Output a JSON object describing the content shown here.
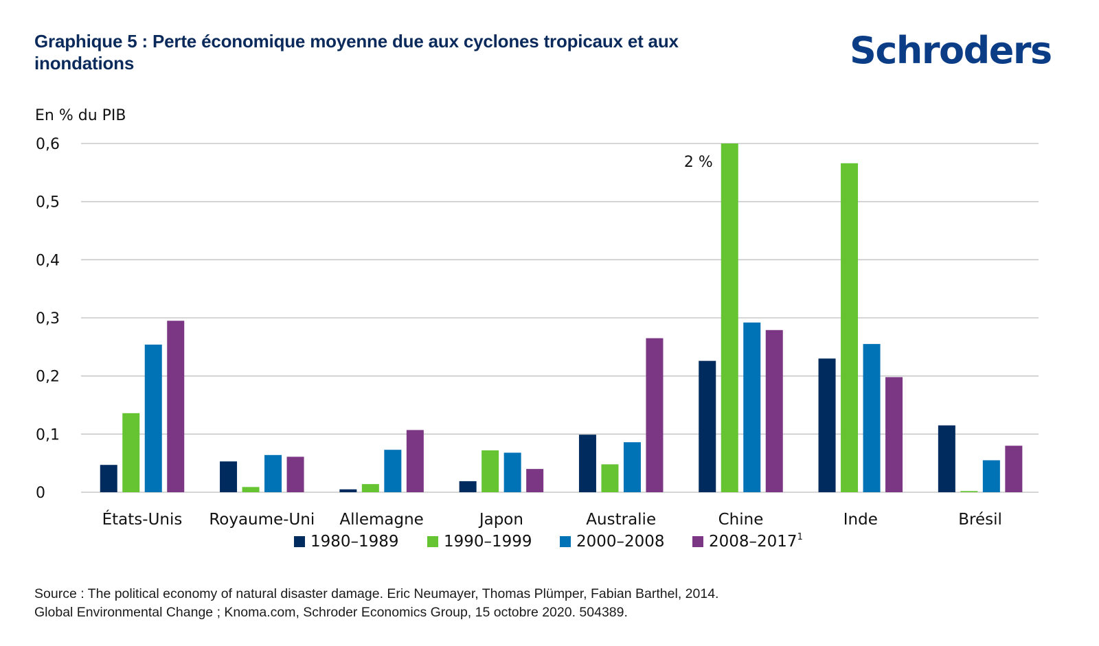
{
  "header": {
    "title": "Graphique 5 : Perte économique moyenne due aux cyclones tropicaux et aux inondations",
    "logo": "Schroders"
  },
  "footer": {
    "source_line1": "Source : The political economy of natural disaster damage. Eric Neumayer, Thomas Plümper, Fabian Barthel, 2014.",
    "source_line2": "Global Environmental Change ; Knoma.com, Schroder Economics Group, 15 octobre 2020. 504389."
  },
  "chart_data": {
    "type": "bar",
    "title": "Graphique 5 : Perte économique moyenne due aux cyclones tropicaux et aux inondations",
    "ylabel": "En % du PIB",
    "xlabel": "",
    "ylim": [
      0,
      0.6
    ],
    "yticks": [
      0,
      0.1,
      0.2,
      0.3,
      0.4,
      0.5,
      0.6
    ],
    "ytick_labels": [
      "0",
      "0,1",
      "0,2",
      "0,3",
      "0,4",
      "0,5",
      "0,6"
    ],
    "grid": true,
    "legend_position": "bottom",
    "categories": [
      "États-Unis",
      "Royaume-Uni",
      "Allemagne",
      "Japon",
      "Australie",
      "Chine",
      "Inde",
      "Brésil"
    ],
    "series": [
      {
        "name": "1980–1989",
        "color": "#002b5f",
        "values": [
          0.047,
          0.053,
          0.005,
          0.019,
          0.099,
          0.226,
          0.23,
          0.115
        ]
      },
      {
        "name": "1990–1999",
        "color": "#66c432",
        "values": [
          0.136,
          0.009,
          0.014,
          0.072,
          0.048,
          2.0,
          0.566,
          0.002
        ]
      },
      {
        "name": "2000–2008",
        "color": "#0072b6",
        "values": [
          0.254,
          0.064,
          0.073,
          0.068,
          0.086,
          0.292,
          0.255,
          0.055
        ]
      },
      {
        "name": "2008–2017",
        "color": "#7b3684",
        "values": [
          0.295,
          0.061,
          0.107,
          0.04,
          0.265,
          0.279,
          0.198,
          0.08
        ]
      }
    ],
    "legend_footnote": "1",
    "annotations": [
      {
        "text": "2 %",
        "category": "Chine",
        "series": "1990–1999",
        "note": "bar truncated at axis max"
      }
    ]
  }
}
